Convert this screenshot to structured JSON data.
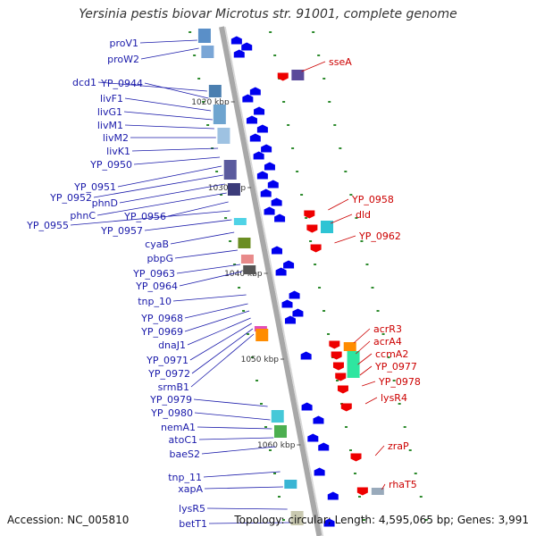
{
  "title": "Yersinia pestis biovar Microtus str. 91001, complete genome",
  "accession": "Accession: NC_005810",
  "topology": "Topology: circular; Length: 4,595,065 bp; Genes: 3,991",
  "colors": {
    "forward": "#0000ee",
    "reverse": "#ee0000",
    "forward_label": "#1a1aaa",
    "reverse_label": "#cc0000",
    "backbone": "#a8a8a8",
    "tick": "#2e8b2e"
  },
  "ticks": [
    "1020 kbp",
    "1030 kbp",
    "1040 kbp",
    "1050 kbp",
    "1060 kbp"
  ],
  "forward_genes": [
    "proV1",
    "proW2",
    "dcd1",
    "YP_0944",
    "livF1",
    "livG1",
    "livM1",
    "livM2",
    "livK1",
    "YP_0950",
    "YP_0951",
    "YP_0952",
    "phnD",
    "phnC",
    "YP_0956",
    "YP_0955",
    "YP_0957",
    "cyaB",
    "pbpG",
    "YP_0963",
    "YP_0964",
    "tnp_10",
    "YP_0968",
    "YP_0969",
    "dnaJ1",
    "YP_0971",
    "YP_0972",
    "srmB1",
    "YP_0979",
    "YP_0980",
    "nemA1",
    "atoC1",
    "baeS2",
    "tnp_11",
    "xapA",
    "lysR5",
    "betT1"
  ],
  "reverse_genes": [
    "sseA",
    "YP_0958",
    "dld",
    "YP_0962",
    "acrR3",
    "acrA4",
    "ccmA2",
    "YP_0977",
    "YP_0978",
    "lysR4",
    "zraP",
    "rhaT5"
  ]
}
